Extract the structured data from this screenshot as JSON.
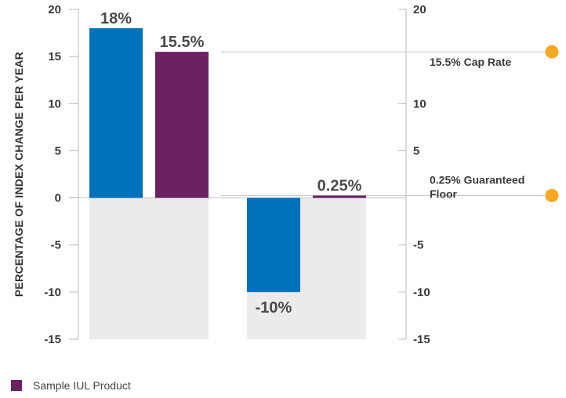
{
  "chart_data": {
    "type": "bar",
    "ylabel": "PERCENTAGE OF INDEX CHANGE PER YEAR",
    "ylim": [
      -15,
      20
    ],
    "left_ticks": [
      "20",
      "15",
      "10",
      "5",
      "0",
      "-5",
      "-10",
      "-15"
    ],
    "right_ticks": [
      "20",
      "10",
      "5",
      "-5",
      "-10",
      "-15"
    ],
    "groups": [
      {
        "bars": [
          {
            "value": 18,
            "label": "18%",
            "color": "#0072BC"
          },
          {
            "value": 15.5,
            "label": "15.5%",
            "color": "#6B2263"
          }
        ]
      },
      {
        "bars": [
          {
            "value": -10,
            "label": "-10%",
            "color": "#0072BC"
          },
          {
            "value": 0.25,
            "label": "0.25%",
            "color": "#6B2263"
          }
        ]
      }
    ],
    "reference_lines": [
      {
        "value": 15.5,
        "label_lines": [
          "15.5% Cap Rate"
        ]
      },
      {
        "value": 0.25,
        "label_lines": [
          "0.25% Guaranteed",
          "Floor"
        ]
      }
    ],
    "marker_color": "#F6A823",
    "negative_area_color": "#EBEBEB",
    "legend": [
      {
        "label": "Sample IUL Product",
        "color": "#6B2263"
      }
    ]
  }
}
